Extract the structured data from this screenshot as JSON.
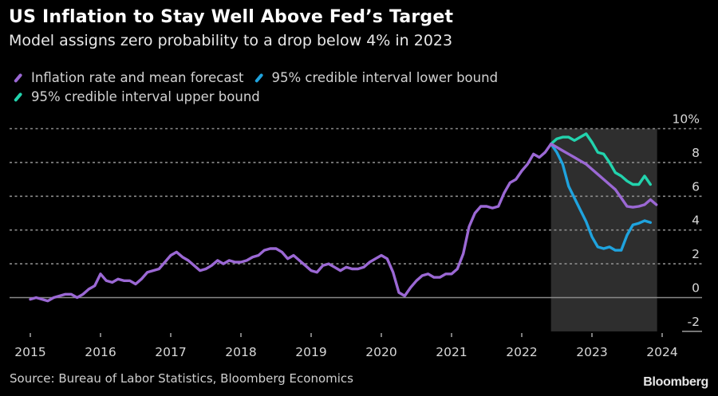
{
  "header": {
    "title": "US Inflation to Stay Well Above Fed’s Target",
    "subtitle": "Model assigns zero probability to a drop below 4% in 2023"
  },
  "legend": [
    {
      "label": "Inflation rate and mean forecast",
      "color": "#9b68d4"
    },
    {
      "label": "95% credible interval lower bound",
      "color": "#1fa3de"
    },
    {
      "label": "95% credible interval upper bound",
      "color": "#22d3ad"
    }
  ],
  "footer": {
    "source": "Source: Bureau of Labor Statistics, Bloomberg Economics",
    "brand": "Bloomberg"
  },
  "chart_data": {
    "type": "line",
    "title": "US Inflation to Stay Well Above Fed’s Target",
    "subtitle": "Model assigns zero probability to a drop below 4% in 2023",
    "xlabel": "",
    "ylabel": "",
    "x_ticks": [
      "2015",
      "2016",
      "2017",
      "2018",
      "2019",
      "2020",
      "2021",
      "2022",
      "2023",
      "2024"
    ],
    "y_ticks": [
      "10%",
      "8",
      "6",
      "4",
      "2",
      "0",
      "-2"
    ],
    "y_tick_values": [
      10,
      8,
      6,
      4,
      2,
      0,
      -2
    ],
    "xlim": [
      2015,
      2024
    ],
    "ylim": [
      -2,
      10
    ],
    "grid": true,
    "y_axis_side": "right",
    "legend_position": "top-left",
    "shaded_forecast_region": {
      "start": "2022-06",
      "end": "2023-12",
      "color": "#2e2e2e"
    },
    "series": [
      {
        "name": "Inflation rate and mean forecast",
        "color": "#9b68d4",
        "start": "2015-01",
        "frequency": "monthly",
        "values": [
          -0.1,
          0.0,
          -0.1,
          -0.2,
          0.0,
          0.1,
          0.2,
          0.2,
          0.0,
          0.2,
          0.5,
          0.7,
          1.4,
          1.0,
          0.9,
          1.1,
          1.0,
          1.0,
          0.8,
          1.1,
          1.5,
          1.6,
          1.7,
          2.1,
          2.5,
          2.7,
          2.4,
          2.2,
          1.9,
          1.6,
          1.7,
          1.9,
          2.2,
          2.0,
          2.2,
          2.1,
          2.1,
          2.2,
          2.4,
          2.5,
          2.8,
          2.9,
          2.9,
          2.7,
          2.3,
          2.5,
          2.2,
          1.9,
          1.6,
          1.5,
          1.9,
          2.0,
          1.8,
          1.6,
          1.8,
          1.7,
          1.7,
          1.8,
          2.1,
          2.3,
          2.5,
          2.3,
          1.5,
          0.3,
          0.1,
          0.6,
          1.0,
          1.3,
          1.4,
          1.2,
          1.2,
          1.4,
          1.4,
          1.7,
          2.6,
          4.2,
          5.0,
          5.4,
          5.4,
          5.3,
          5.4,
          6.2,
          6.8,
          7.0,
          7.5,
          7.9,
          8.5,
          8.3,
          8.6,
          9.1,
          8.9,
          8.7,
          8.5,
          8.3,
          8.1,
          7.9,
          7.6,
          7.3,
          7.0,
          6.7,
          6.4,
          5.9,
          5.4,
          5.35,
          5.4,
          5.5,
          5.8,
          5.5
        ]
      },
      {
        "name": "95% credible interval lower bound",
        "color": "#1fa3de",
        "start": "2022-06",
        "frequency": "monthly",
        "values": [
          9.1,
          8.6,
          7.9,
          6.6,
          5.9,
          5.2,
          4.5,
          3.6,
          3.0,
          2.9,
          3.0,
          2.8,
          2.8,
          3.7,
          4.3,
          4.4,
          4.55,
          4.45
        ]
      },
      {
        "name": "95% credible interval upper bound",
        "color": "#22d3ad",
        "start": "2022-06",
        "frequency": "monthly",
        "values": [
          9.1,
          9.4,
          9.5,
          9.5,
          9.3,
          9.5,
          9.7,
          9.2,
          8.6,
          8.5,
          8.0,
          7.4,
          7.2,
          6.9,
          6.7,
          6.7,
          7.2,
          6.7
        ]
      }
    ]
  }
}
